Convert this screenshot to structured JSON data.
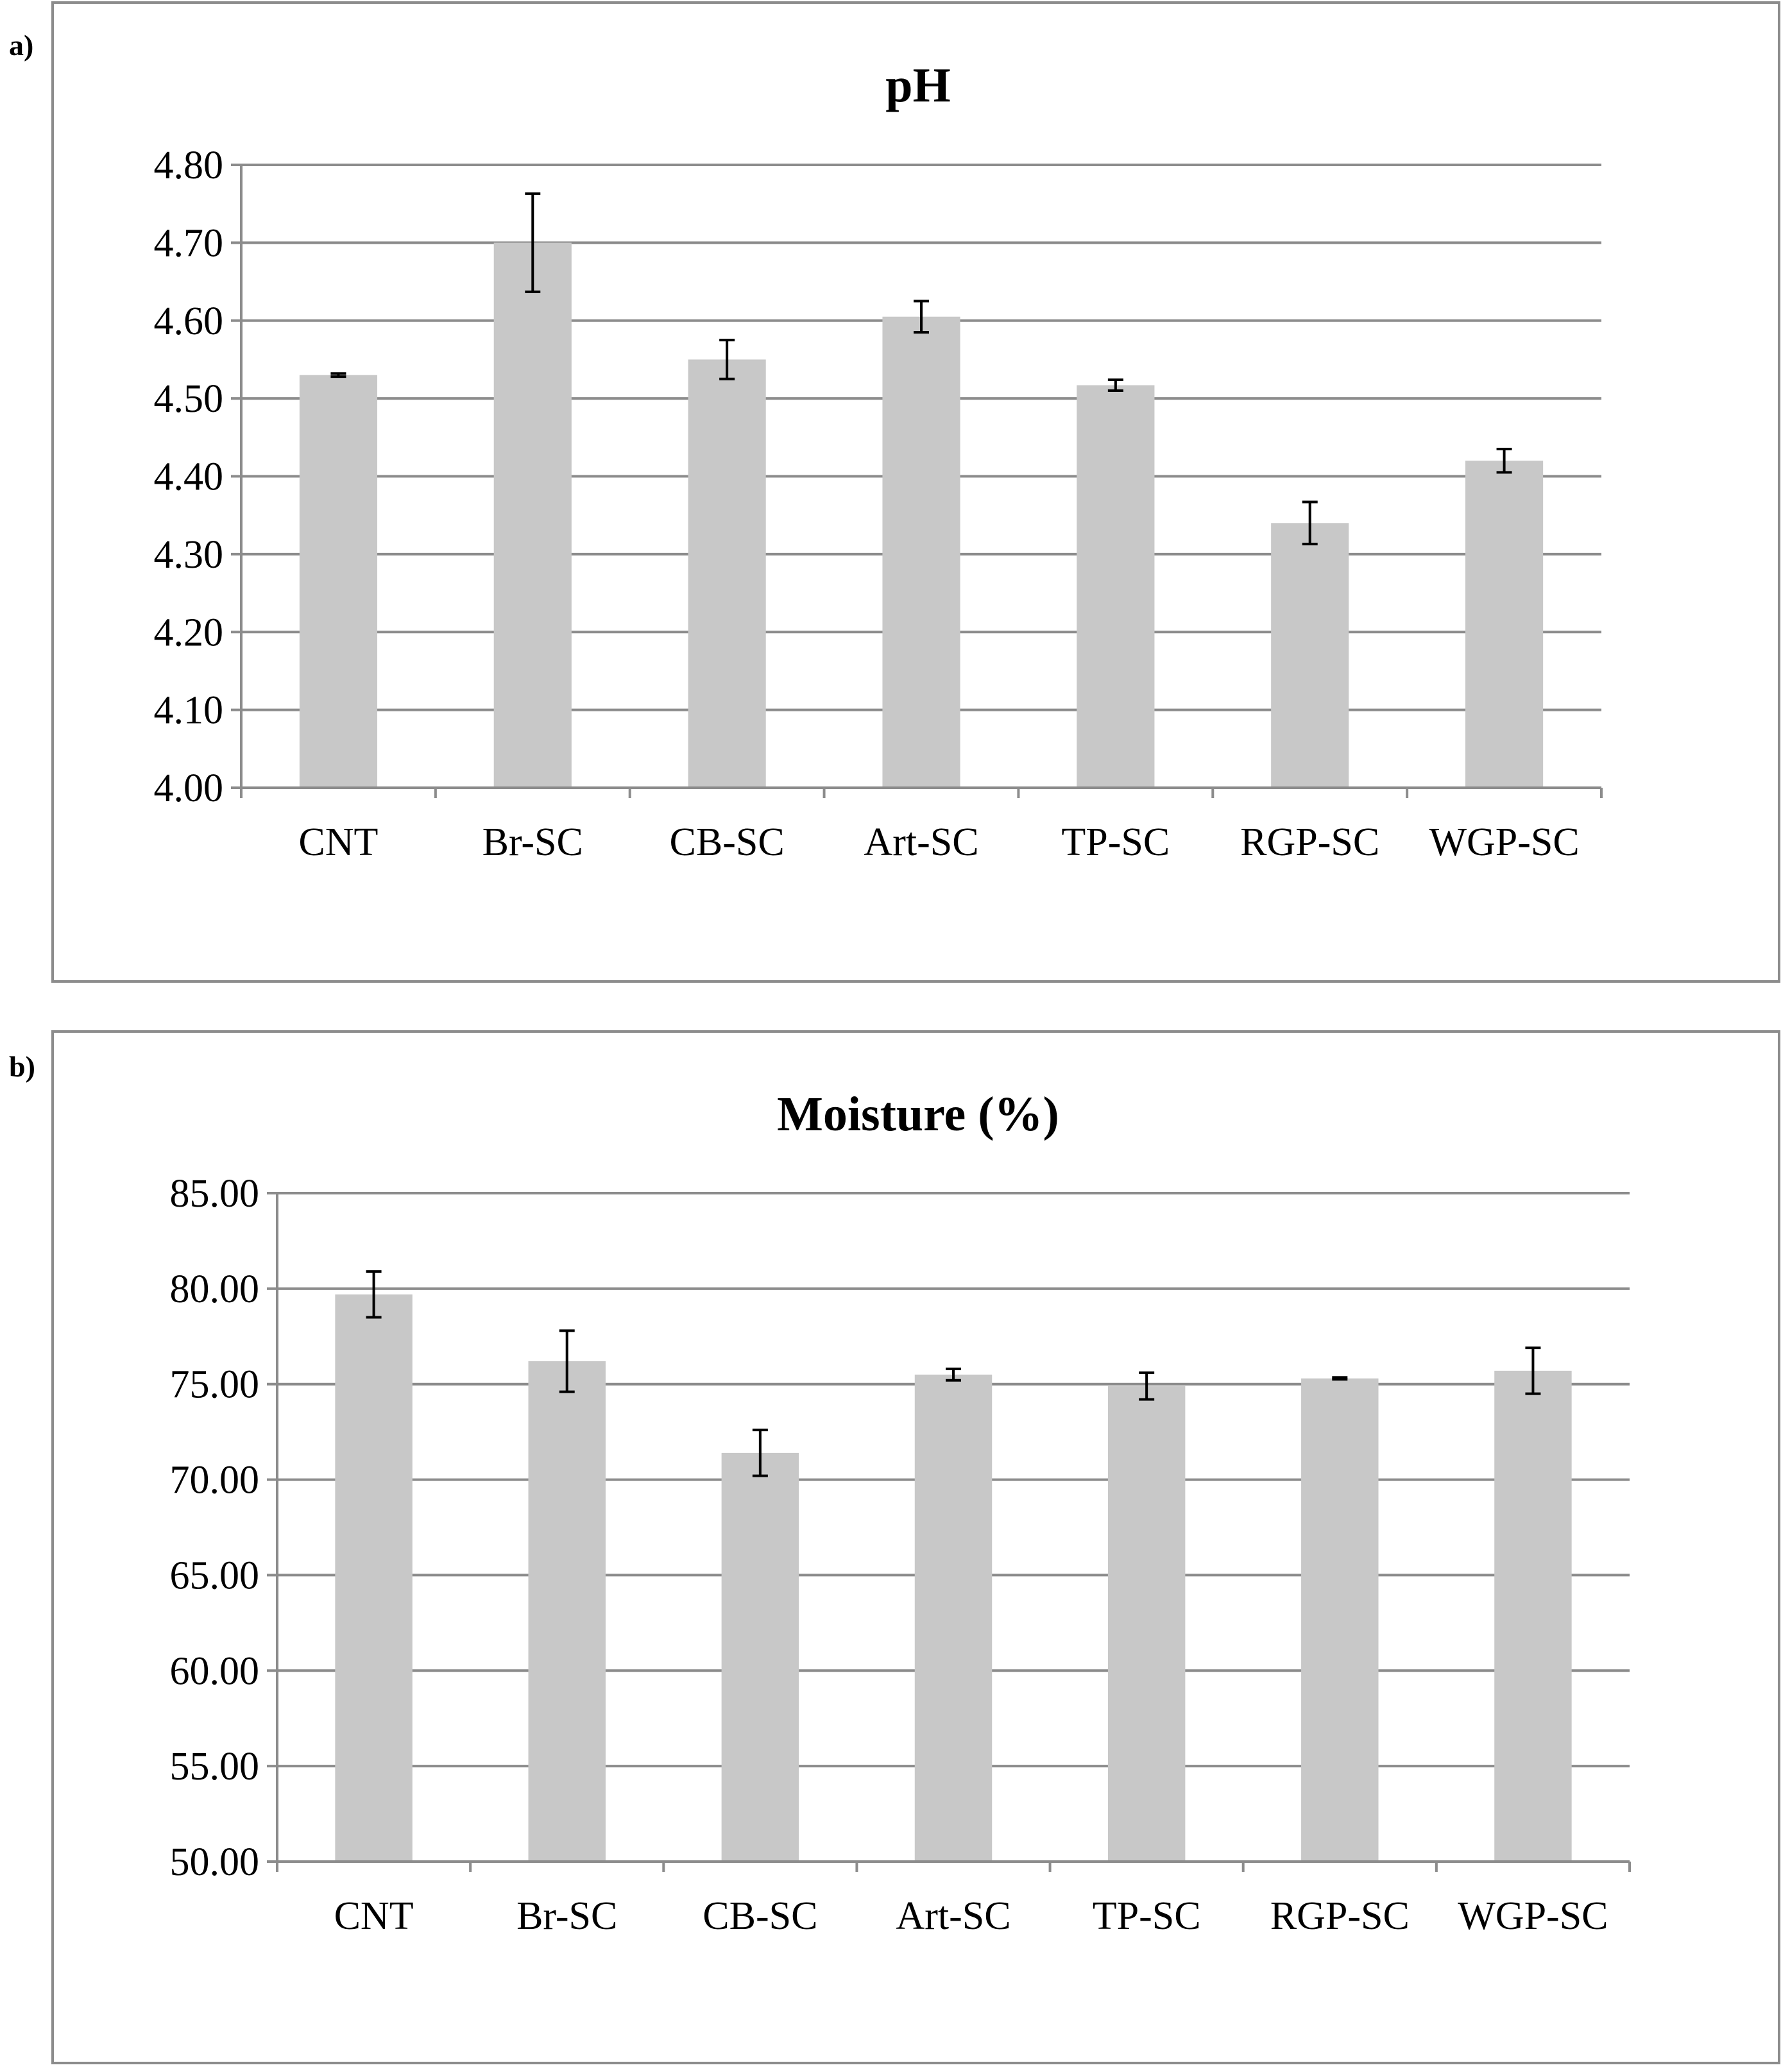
{
  "panels": {
    "a": {
      "label": "a)"
    },
    "b": {
      "label": "b)"
    }
  },
  "colors": {
    "bar": "#c8c8c8",
    "grid": "#8c8c8c",
    "axis": "#8c8c8c",
    "error": "#000000"
  },
  "chart_data": [
    {
      "type": "bar",
      "title": "pH",
      "xlabel": "",
      "ylabel": "",
      "categories": [
        "CNT",
        "Br-SC",
        "CB-SC",
        "Art-SC",
        "TP-SC",
        "RGP-SC",
        "WGP-SC"
      ],
      "values": [
        4.53,
        4.7,
        4.55,
        4.605,
        4.517,
        4.34,
        4.42
      ],
      "errors": [
        0.002,
        0.063,
        0.025,
        0.02,
        0.007,
        0.027,
        0.015
      ],
      "ylim": [
        4.0,
        4.8
      ],
      "yticks": [
        "4.00",
        "4.10",
        "4.20",
        "4.30",
        "4.40",
        "4.50",
        "4.60",
        "4.70",
        "4.80"
      ],
      "grid": true,
      "legend": "none"
    },
    {
      "type": "bar",
      "title": "Moisture (%)",
      "xlabel": "",
      "ylabel": "",
      "categories": [
        "CNT",
        "Br-SC",
        "CB-SC",
        "Art-SC",
        "TP-SC",
        "RGP-SC",
        "WGP-SC"
      ],
      "values": [
        79.7,
        76.2,
        71.4,
        75.5,
        74.9,
        75.3,
        75.7
      ],
      "errors": [
        1.2,
        1.6,
        1.2,
        0.3,
        0.7,
        0.05,
        1.2
      ],
      "ylim": [
        50.0,
        85.0
      ],
      "yticks": [
        "50.00",
        "55.00",
        "60.00",
        "65.00",
        "70.00",
        "75.00",
        "80.00",
        "85.00"
      ],
      "grid": true,
      "legend": "none"
    }
  ]
}
